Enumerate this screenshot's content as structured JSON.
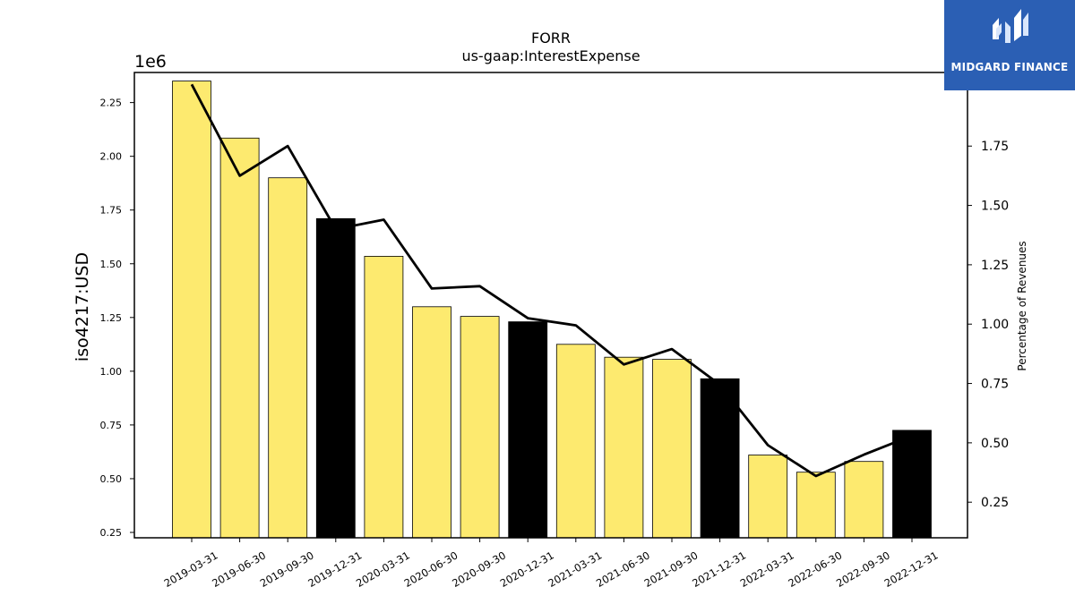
{
  "chart_data": {
    "type": "bar",
    "title": "FORR",
    "subtitle": "us-gaap:InterestExpense",
    "ylabel": "iso4217:USD",
    "y_offset_label": "1e6",
    "y2label": "Percentage of Revenues",
    "categories": [
      "2019-03-31",
      "2019-06-30",
      "2019-09-30",
      "2019-12-31",
      "2020-03-31",
      "2020-06-30",
      "2020-09-30",
      "2020-12-31",
      "2021-03-31",
      "2021-06-30",
      "2021-09-30",
      "2021-12-31",
      "2022-03-31",
      "2022-06-30",
      "2022-09-30",
      "2022-12-31"
    ],
    "values": [
      2350000,
      2085000,
      1900000,
      1710000,
      1535000,
      1300000,
      1255000,
      1230000,
      1125000,
      1065000,
      1055000,
      965000,
      610000,
      530000,
      580000,
      725000
    ],
    "bar_colors": [
      "#fdea6f",
      "#fdea6f",
      "#fdea6f",
      "#000000",
      "#fdea6f",
      "#fdea6f",
      "#fdea6f",
      "#000000",
      "#fdea6f",
      "#fdea6f",
      "#fdea6f",
      "#000000",
      "#fdea6f",
      "#fdea6f",
      "#fdea6f",
      "#000000"
    ],
    "line_series": {
      "values": [
        2.01,
        1.625,
        1.75,
        1.4,
        1.44,
        1.15,
        1.16,
        1.025,
        0.995,
        0.83,
        0.895,
        0.745,
        0.49,
        0.36,
        0.45,
        0.53
      ]
    },
    "ylim": [
      0.225,
      2.39
    ],
    "yticks": [
      "0.25",
      "0.50",
      "0.75",
      "1.00",
      "1.25",
      "1.50",
      "1.75",
      "2.00",
      "2.25"
    ],
    "y2lim": [
      0.1,
      2.06
    ],
    "y2ticks": [
      "0.25",
      "0.50",
      "0.75",
      "1.00",
      "1.25",
      "1.50",
      "1.75"
    ],
    "grid": false
  },
  "logo": {
    "text": "MIDGARD FINANCE",
    "color": "#2b5fb4"
  }
}
